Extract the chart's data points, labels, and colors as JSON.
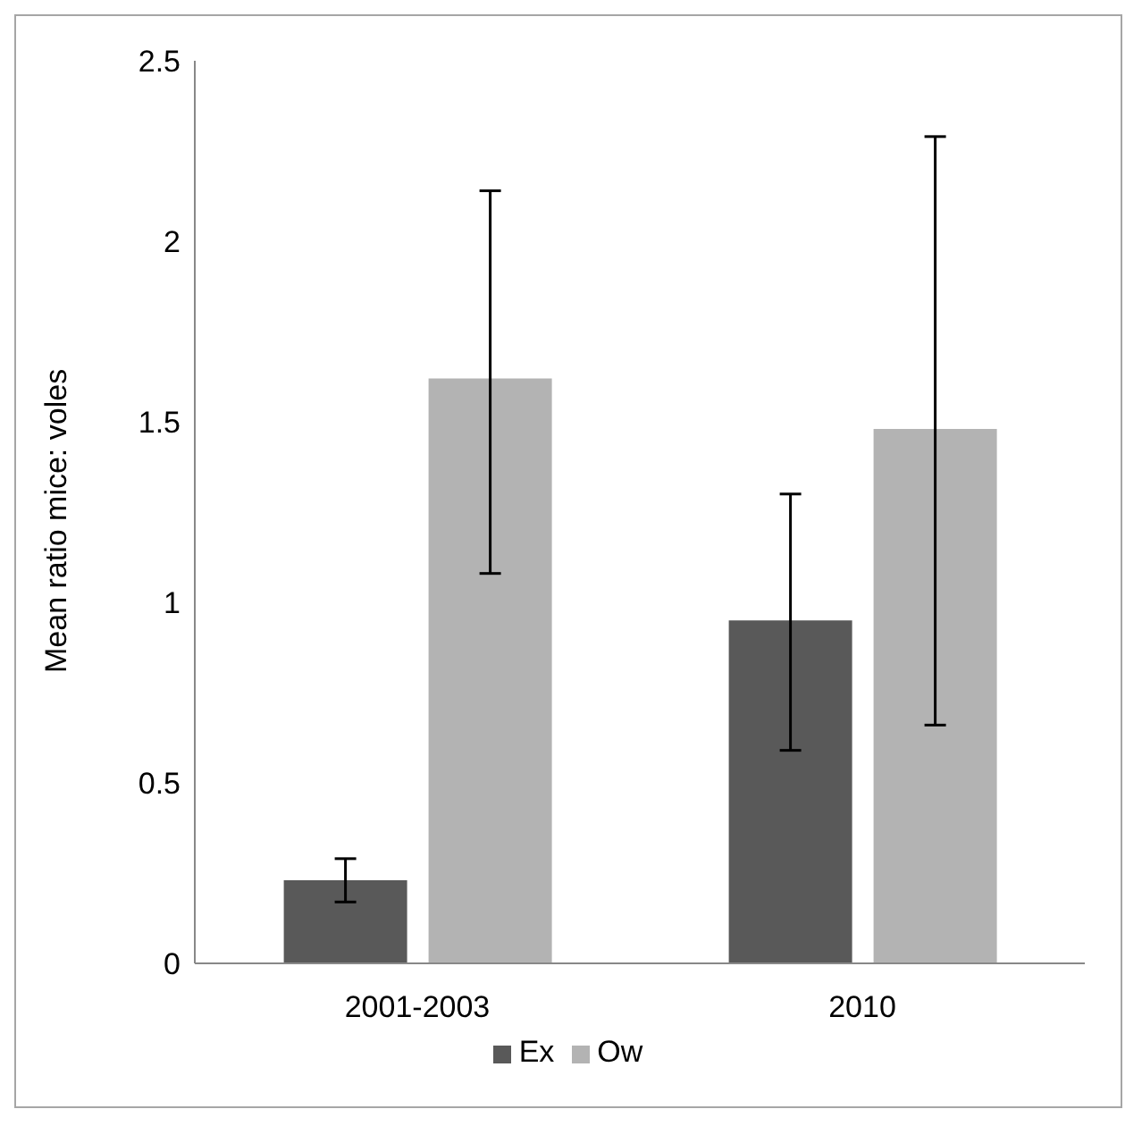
{
  "chart_data": {
    "type": "bar",
    "ylabel": "Mean ratio mice: voles",
    "categories": [
      "2001-2003",
      "2010"
    ],
    "series": [
      {
        "name": "Ex",
        "color": "#595959",
        "values": [
          0.23,
          0.95
        ],
        "errors": [
          [
            0.17,
            0.29
          ],
          [
            0.59,
            1.3
          ]
        ]
      },
      {
        "name": "Ow",
        "color": "#b3b3b3",
        "values": [
          1.62,
          1.48
        ],
        "errors": [
          [
            1.08,
            2.14
          ],
          [
            0.66,
            2.29
          ]
        ]
      }
    ],
    "ylim": [
      0,
      2.5
    ],
    "yticks": [
      0,
      0.5,
      1,
      1.5,
      2,
      2.5
    ],
    "grid": false,
    "legend": "bottom"
  }
}
